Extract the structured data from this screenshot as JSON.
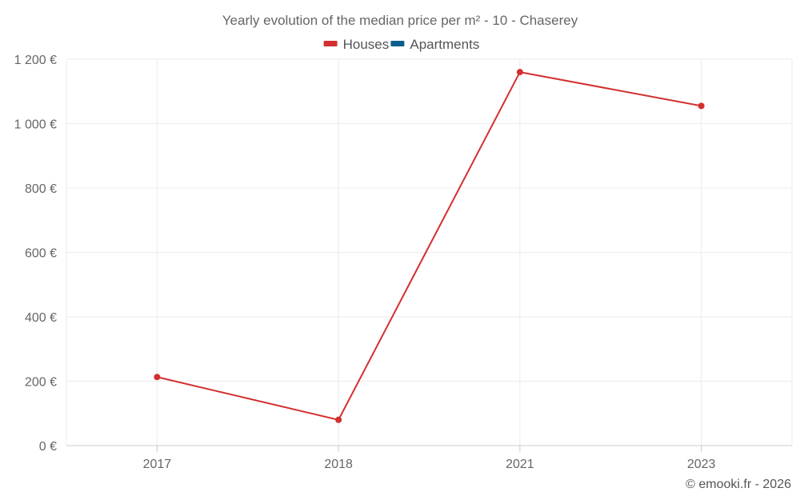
{
  "chart_data": {
    "type": "line",
    "title": "Yearly evolution of the median price per m² - 10 - Chaserey",
    "xlabel": "",
    "ylabel": "",
    "categories": [
      "2017",
      "2018",
      "2021",
      "2023"
    ],
    "series": [
      {
        "name": "Houses",
        "color": "#d32f2f",
        "values": [
          213,
          80,
          1160,
          1055
        ]
      },
      {
        "name": "Apartments",
        "color": "#0b5f8a",
        "values": [
          null,
          null,
          null,
          null
        ]
      }
    ],
    "ylim": [
      0,
      1200
    ],
    "y_ticks": [
      0,
      200,
      400,
      600,
      800,
      1000,
      1200
    ],
    "y_tick_labels": [
      "0 €",
      "200 €",
      "400 €",
      "600 €",
      "800 €",
      "1 000 €",
      "1 200 €"
    ],
    "grid": true,
    "legend": "top-center"
  },
  "credit": "© emooki.fr - 2026"
}
